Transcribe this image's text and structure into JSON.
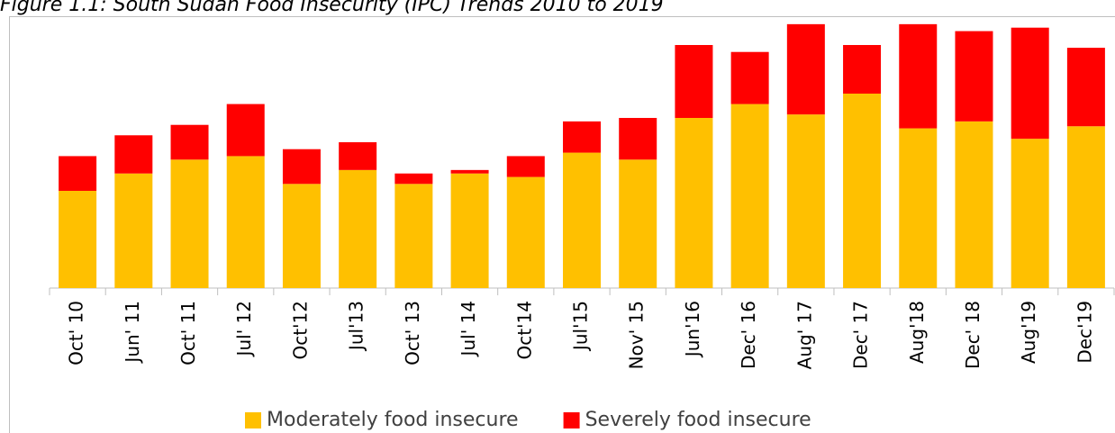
{
  "chart_data": {
    "type": "stacked_bar",
    "title": "Figure 1.1: South Sudan Food Insecurity (IPC) Trends 2010 to 2019",
    "categories": [
      "Oct' 10",
      "Jun' 11",
      "Oct' 11",
      "Jul' 12",
      "Oct'12",
      "Jul'13",
      "Oct' 13",
      "Jul' 14",
      "Oct'14",
      "Jul'15",
      "Nov' 15",
      "Jun'16",
      "Dec' 16",
      "Aug' 17",
      "Dec' 17",
      "Aug'18",
      "Dec' 18",
      "Aug'19",
      "Dec'19"
    ],
    "series": [
      {
        "name": "Moderately food insecure",
        "color": "#ffc000",
        "values": [
          28,
          33,
          37,
          38,
          30,
          34,
          30,
          33,
          32,
          39,
          37,
          49,
          53,
          50,
          56,
          46,
          48,
          43,
          46.6
        ],
        "value_labels": [
          "28%",
          "33%",
          "37%",
          "38%",
          "30%",
          "34%",
          "30%",
          "33%",
          "32%",
          "39%",
          "37%",
          "49%",
          "53%",
          "50%",
          "56%",
          "46%",
          "48%",
          "43%",
          "46.6%"
        ]
      },
      {
        "name": "Severely food insecure",
        "color": "#ff0000",
        "values": [
          10,
          11,
          10,
          15,
          10,
          8,
          3,
          1,
          6,
          9,
          12,
          21,
          15,
          26,
          14,
          30,
          26,
          32,
          22.6
        ],
        "value_labels": [
          "10%",
          "11%",
          "10%",
          "15%",
          "10%",
          "8%",
          "3%",
          "1%",
          "6%",
          "9%",
          "12%",
          "21%",
          "15%",
          "26%",
          "14%",
          "30%",
          "26%",
          "32%",
          "22.6%"
        ]
      }
    ],
    "ylim": [
      0,
      77
    ]
  }
}
